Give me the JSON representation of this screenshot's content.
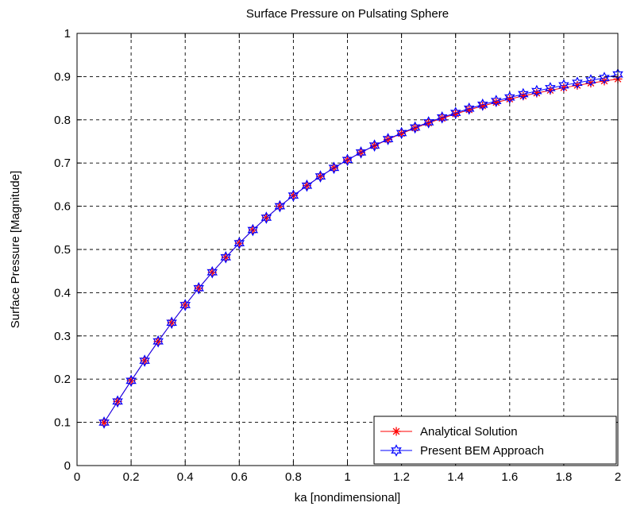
{
  "colors": {
    "analytical": "#ff0000",
    "bem": "#0000ff",
    "grid": "#000000",
    "background": "#ffffff"
  },
  "chart_data": {
    "type": "line",
    "title": "Surface Pressure on Pulsating Sphere",
    "xlabel": "ka [nondimensional]",
    "ylabel": "Surface Pressure [Magnitude]",
    "xlim": [
      0,
      2
    ],
    "ylim": [
      0,
      1
    ],
    "xticks": [
      "0",
      "0.2",
      "0.4",
      "0.6",
      "0.8",
      "1",
      "1.2",
      "1.4",
      "1.6",
      "1.8",
      "2"
    ],
    "yticks": [
      "0",
      "0.1",
      "0.2",
      "0.3",
      "0.4",
      "0.5",
      "0.6",
      "0.7",
      "0.8",
      "0.9",
      "1"
    ],
    "grid": true,
    "legend_position": "bottom-right",
    "x": [
      0.1,
      0.15,
      0.2,
      0.25,
      0.3,
      0.35,
      0.4,
      0.45,
      0.5,
      0.55,
      0.6,
      0.65,
      0.7,
      0.75,
      0.8,
      0.85,
      0.9,
      0.95,
      1.0,
      1.05,
      1.1,
      1.15,
      1.2,
      1.25,
      1.3,
      1.35,
      1.4,
      1.45,
      1.5,
      1.55,
      1.6,
      1.65,
      1.7,
      1.75,
      1.8,
      1.85,
      1.9,
      1.95,
      2.0
    ],
    "series": [
      {
        "name": "Analytical Solution",
        "marker": "asterisk",
        "color": "#ff0000",
        "values": [
          0.0995,
          0.1483,
          0.1961,
          0.2425,
          0.2873,
          0.3304,
          0.3714,
          0.4104,
          0.4472,
          0.4819,
          0.5145,
          0.545,
          0.5735,
          0.6,
          0.6247,
          0.6476,
          0.669,
          0.6888,
          0.7071,
          0.7242,
          0.7399,
          0.7545,
          0.7682,
          0.7809,
          0.7926,
          0.8036,
          0.8137,
          0.8232,
          0.8321,
          0.8403,
          0.848,
          0.8552,
          0.8619,
          0.8682,
          0.8742,
          0.8797,
          0.8849,
          0.8898,
          0.8944
        ]
      },
      {
        "name": "Present BEM Approach",
        "marker": "hexagram",
        "color": "#0000ff",
        "values": [
          0.0995,
          0.1483,
          0.1961,
          0.2425,
          0.2873,
          0.3304,
          0.3714,
          0.4104,
          0.4472,
          0.4819,
          0.5145,
          0.545,
          0.5735,
          0.6,
          0.6247,
          0.6476,
          0.669,
          0.6888,
          0.7071,
          0.7245,
          0.7405,
          0.7554,
          0.7694,
          0.7823,
          0.7943,
          0.8055,
          0.816,
          0.8258,
          0.835,
          0.8436,
          0.8517,
          0.8594,
          0.8666,
          0.8733,
          0.8797,
          0.8857,
          0.8914,
          0.8968,
          0.905
        ]
      }
    ]
  }
}
